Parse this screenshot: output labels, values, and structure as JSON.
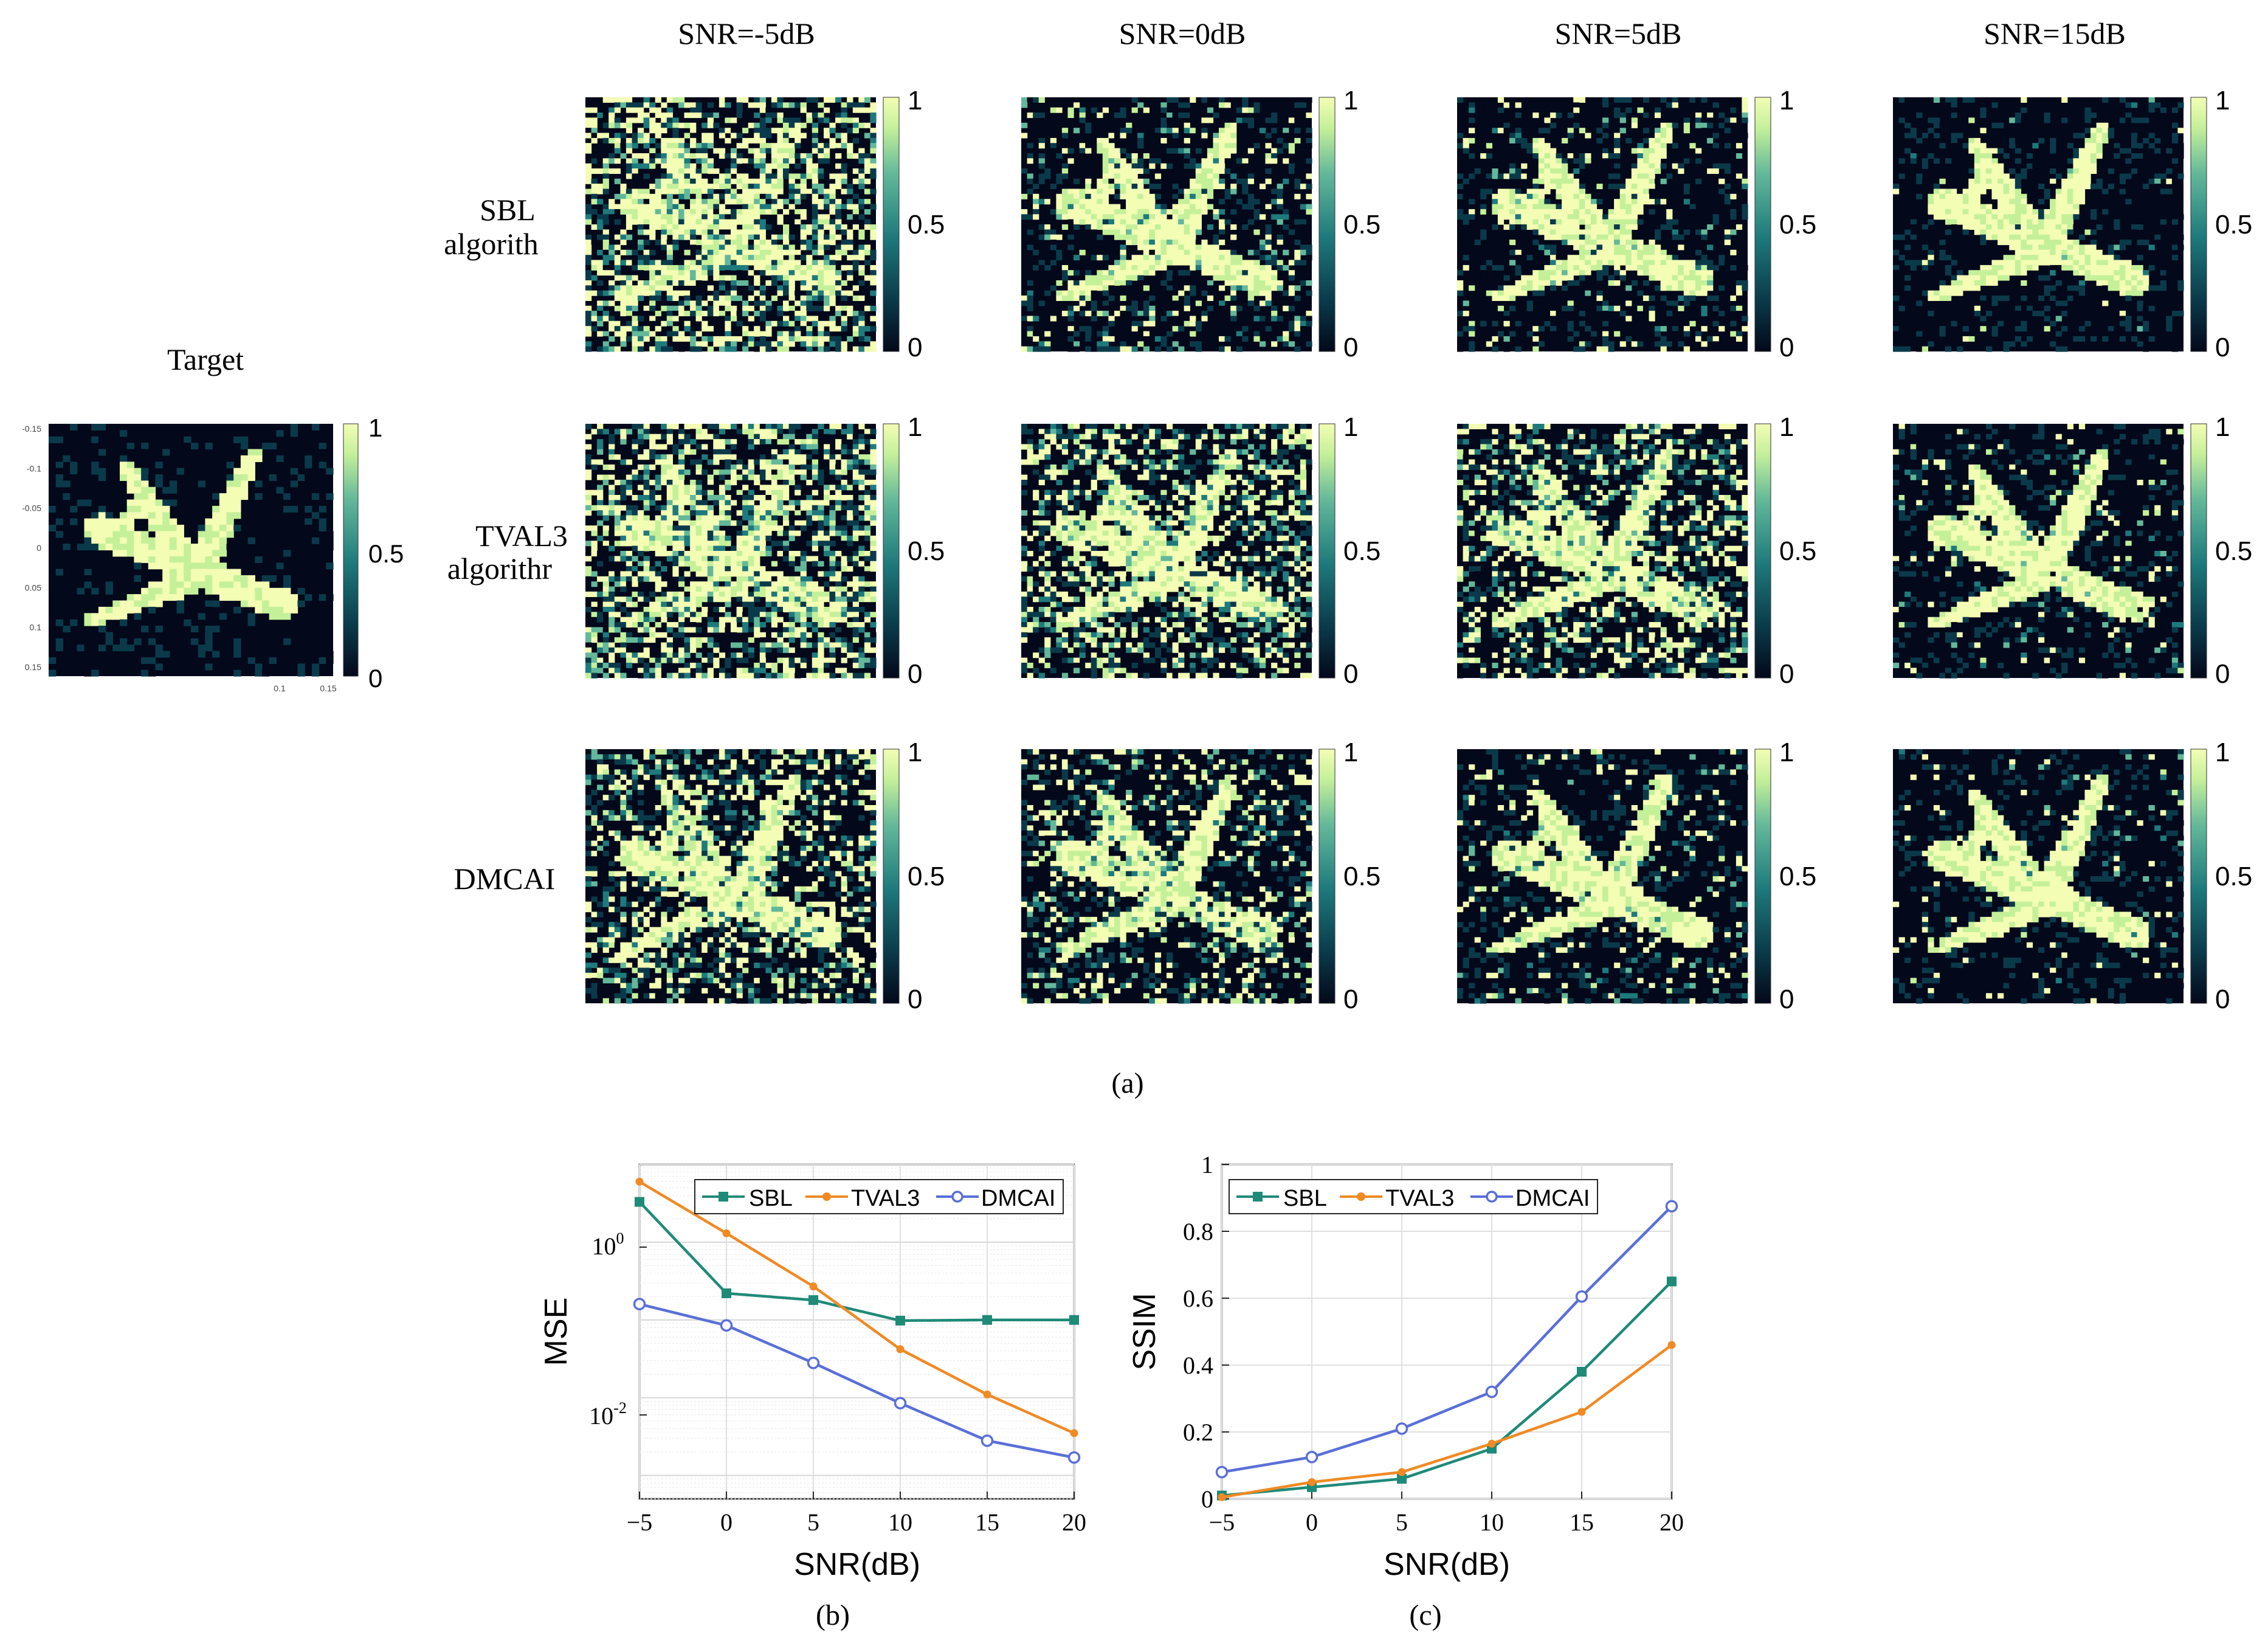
{
  "panel_a": {
    "column_headers": [
      "SNR=-5dB",
      "SNR=0dB",
      "SNR=5dB",
      "SNR=15dB"
    ],
    "row_labels": [
      {
        "line1": "SBL",
        "line2": "algorith"
      },
      {
        "line1": "TVAL3",
        "line2": "algorithr"
      },
      {
        "line1": "DMCAI",
        "line2": ""
      }
    ],
    "target_title": "Target",
    "target_y_ticks": [
      "-0.15",
      "-0.1",
      "-0.05",
      "0",
      "0.05",
      "0.1",
      "0.15"
    ],
    "target_x_ticks": [
      "0.1",
      "0.15"
    ],
    "colorbar_ticks": [
      "1",
      "0.5",
      "0"
    ],
    "caption": "(a)",
    "colormap": [
      "#03081a",
      "#0a3a4a",
      "#1e7a7c",
      "#63b89a",
      "#c5f09a",
      "#f3fdb4"
    ],
    "noise_levels": {
      "SBL": [
        0.5,
        0.15,
        0.12,
        0.02
      ],
      "TVAL3": [
        0.5,
        0.4,
        0.35,
        0.08
      ],
      "DMCAI": [
        0.35,
        0.25,
        0.12,
        0.05
      ]
    }
  },
  "chart_data": [
    {
      "type": "line",
      "caption": "(b)",
      "xlabel": "SNR(dB)",
      "ylabel": "MSE",
      "yscale": "log",
      "x": [
        -5,
        0,
        5,
        10,
        15,
        20
      ],
      "xlim": [
        -5,
        20
      ],
      "ylim": [
        0.0005,
        10
      ],
      "x_ticks": [
        "-5",
        "0",
        "5",
        "10",
        "15",
        "20"
      ],
      "y_ticks": [
        {
          "value": 1,
          "base": "10",
          "exp": "0"
        },
        {
          "value": 0.01,
          "base": "10",
          "exp": "-2"
        }
      ],
      "grid": true,
      "legend_position": "top",
      "series": [
        {
          "name": "SBL",
          "color": "#1f8a78",
          "marker": "square",
          "values": [
            3.3,
            0.22,
            0.18,
            0.098,
            0.1,
            0.1
          ]
        },
        {
          "name": "TVAL3",
          "color": "#f08a24",
          "marker": "dot",
          "values": [
            6.0,
            1.3,
            0.27,
            0.042,
            0.011,
            0.0035
          ]
        },
        {
          "name": "DMCAI",
          "color": "#5a6fd8",
          "marker": "circle",
          "values": [
            0.16,
            0.085,
            0.028,
            0.0085,
            0.0028,
            0.0017
          ]
        }
      ]
    },
    {
      "type": "line",
      "caption": "(c)",
      "xlabel": "SNR(dB)",
      "ylabel": "SSIM",
      "yscale": "linear",
      "x": [
        -5,
        0,
        5,
        10,
        15,
        20
      ],
      "xlim": [
        -5,
        20
      ],
      "ylim": [
        0,
        1
      ],
      "x_ticks": [
        "-5",
        "0",
        "5",
        "10",
        "15",
        "20"
      ],
      "y_ticks": [
        "0",
        "0.2",
        "0.4",
        "0.6",
        "0.8",
        "1"
      ],
      "grid": true,
      "legend_position": "top",
      "series": [
        {
          "name": "SBL",
          "color": "#1f8a78",
          "marker": "square",
          "values": [
            0.01,
            0.035,
            0.06,
            0.15,
            0.38,
            0.65
          ]
        },
        {
          "name": "TVAL3",
          "color": "#f08a24",
          "marker": "dot",
          "values": [
            0.005,
            0.05,
            0.08,
            0.165,
            0.26,
            0.46
          ]
        },
        {
          "name": "DMCAI",
          "color": "#5a6fd8",
          "marker": "circle",
          "values": [
            0.08,
            0.125,
            0.21,
            0.32,
            0.605,
            0.875
          ]
        }
      ]
    }
  ]
}
